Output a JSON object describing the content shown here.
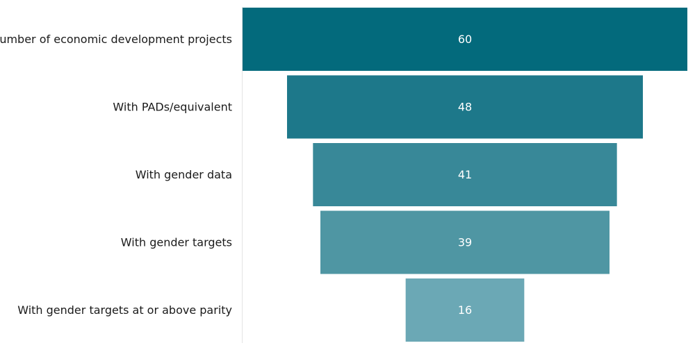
{
  "chart_data": {
    "type": "bar",
    "subtype": "funnel",
    "title": "",
    "xlabel": "",
    "ylabel": "",
    "categories": [
      "Number of economic development projects",
      "With PADs/equivalent",
      "With gender data",
      "With gender targets",
      "With gender targets at or above parity"
    ],
    "values": [
      60,
      48,
      41,
      39,
      16
    ],
    "value_labels": [
      "60",
      "48",
      "41",
      "39",
      "16"
    ],
    "colors": [
      "#036a7c",
      "#1d788a",
      "#388898",
      "#4f96a3",
      "#6ba8b5"
    ],
    "axis_color": "#e3e3e3",
    "ylim": [
      0,
      60
    ],
    "grid": false,
    "legend": "none"
  }
}
